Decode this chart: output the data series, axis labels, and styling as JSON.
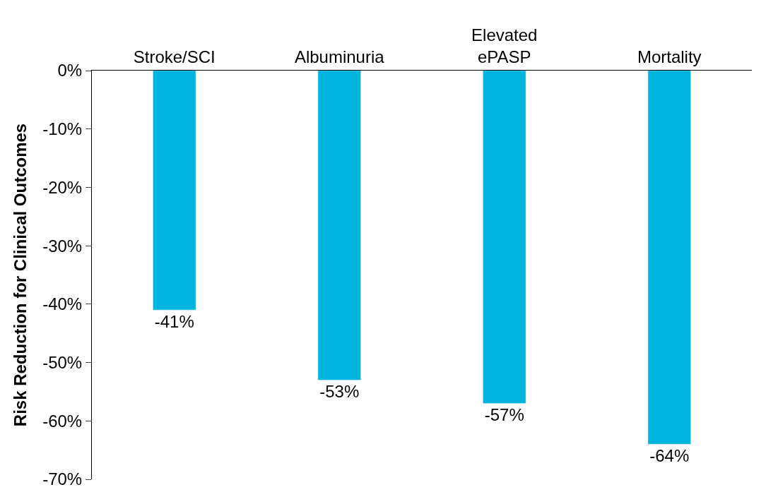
{
  "chart_data": {
    "type": "bar",
    "ylabel": "Risk Reduction for Clinical Outcomes",
    "categories": [
      "Stroke/SCI",
      "Albuminuria",
      "Elevated ePASP",
      "Mortality"
    ],
    "values": [
      -41,
      -53,
      -57,
      -64
    ],
    "value_labels": [
      "-41%",
      "-53%",
      "-57%",
      "-64%"
    ],
    "color": "#00b4e0",
    "ylim": [
      -70,
      0
    ],
    "yticks": [
      {
        "value": 0,
        "label": "0%"
      },
      {
        "value": -10,
        "label": "-10%"
      },
      {
        "value": -20,
        "label": "-20%"
      },
      {
        "value": -30,
        "label": "-30%"
      },
      {
        "value": -40,
        "label": "-40%"
      },
      {
        "value": -50,
        "label": "-50%"
      },
      {
        "value": -60,
        "label": "-60%"
      },
      {
        "value": -70,
        "label": "-70%"
      }
    ],
    "data_labels": false
  }
}
